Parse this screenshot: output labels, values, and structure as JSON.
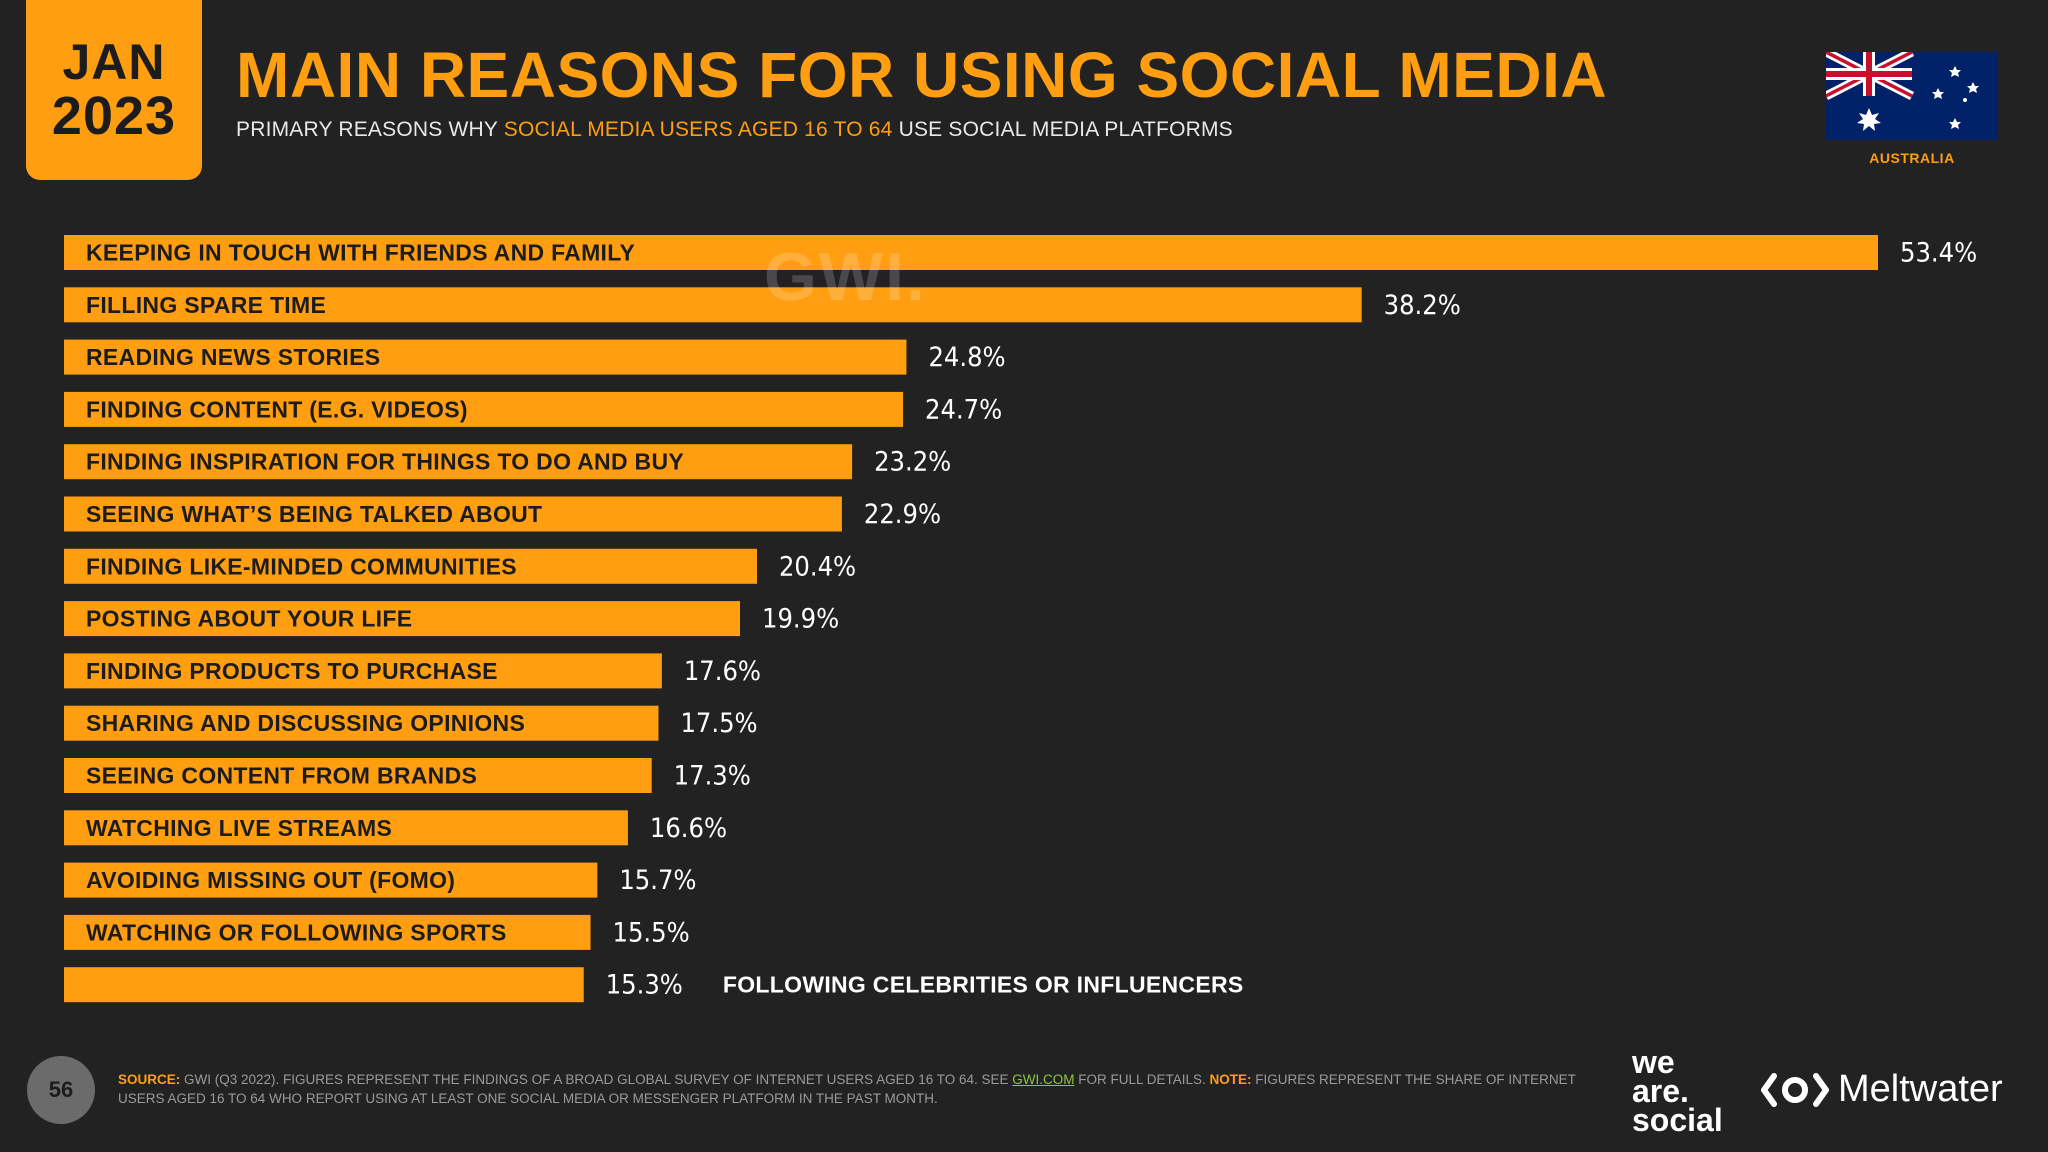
{
  "header": {
    "month": "JAN",
    "year": "2023",
    "title": "MAIN REASONS FOR USING SOCIAL MEDIA",
    "subtitle_pre": "PRIMARY REASONS WHY ",
    "subtitle_highlight": "SOCIAL MEDIA USERS AGED 16 TO 64",
    "subtitle_post": " USE SOCIAL MEDIA PLATFORMS",
    "country": "AUSTRALIA",
    "flag_icon": "australia-flag-icon"
  },
  "watermark": "GWI.",
  "colors": {
    "accent": "#ff9e10",
    "background": "#222222",
    "bar_label": "#1c1c1c",
    "value_label": "#ffffff"
  },
  "chart_data": {
    "type": "bar",
    "orientation": "horizontal",
    "title": "MAIN REASONS FOR USING SOCIAL MEDIA",
    "xlabel": "",
    "ylabel": "",
    "xlim": [
      0,
      53.4
    ],
    "unit": "%",
    "categories": [
      "KEEPING IN TOUCH WITH FRIENDS AND FAMILY",
      "FILLING SPARE TIME",
      "READING NEWS STORIES",
      "FINDING CONTENT (E.G. VIDEOS)",
      "FINDING INSPIRATION FOR THINGS TO DO AND BUY",
      "SEEING WHAT’S BEING TALKED ABOUT",
      "FINDING LIKE-MINDED COMMUNITIES",
      "POSTING ABOUT YOUR LIFE",
      "FINDING PRODUCTS TO PURCHASE",
      "SHARING AND DISCUSSING OPINIONS",
      "SEEING CONTENT FROM BRANDS",
      "WATCHING LIVE STREAMS",
      "AVOIDING MISSING OUT (FOMO)",
      "WATCHING OR FOLLOWING SPORTS",
      "FOLLOWING CELEBRITIES OR INFLUENCERS"
    ],
    "values": [
      53.4,
      38.2,
      24.8,
      24.7,
      23.2,
      22.9,
      20.4,
      19.9,
      17.6,
      17.5,
      17.3,
      16.6,
      15.7,
      15.5,
      15.3
    ],
    "value_labels": [
      "53.4%",
      "38.2%",
      "24.8%",
      "24.7%",
      "23.2%",
      "22.9%",
      "20.4%",
      "19.9%",
      "17.6%",
      "17.5%",
      "17.3%",
      "16.6%",
      "15.7%",
      "15.5%",
      "15.3%"
    ],
    "grid": false,
    "legend": "none"
  },
  "footer": {
    "page_number": "56",
    "source_label": "SOURCE:",
    "source_text_1": " GWI (Q3 2022). FIGURES REPRESENT THE FINDINGS OF A BROAD GLOBAL SURVEY OF INTERNET USERS AGED 16 TO 64. SEE ",
    "source_link": "GWI.COM",
    "source_text_2": " FOR FULL DETAILS. ",
    "note_label": "NOTE:",
    "note_text": " FIGURES REPRESENT THE SHARE OF INTERNET USERS AGED 16 TO 64 WHO REPORT USING AT LEAST ONE SOCIAL MEDIA OR MESSENGER PLATFORM IN THE PAST MONTH.",
    "brand_1_line_1": "we",
    "brand_1_line_2": "are.",
    "brand_1_line_3": "social",
    "brand_2": "Meltwater",
    "brand_2_icon": "meltwater-logo-icon"
  }
}
